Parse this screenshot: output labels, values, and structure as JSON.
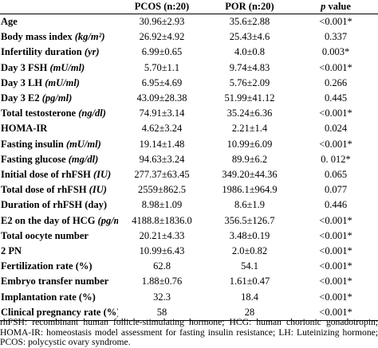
{
  "header": {
    "label": "",
    "pcos": "PCOS (n:20)",
    "por": "POR (n:20)",
    "p_italic": "p",
    "p_rest": " value"
  },
  "rows": [
    {
      "label": "Age",
      "label_unit": "",
      "pcos": "30.96±2.93",
      "por": "35.6±2.88",
      "p": "<0.001*"
    },
    {
      "label": "Body mass index ",
      "label_unit": "(kg/m²)",
      "pcos": "26.92±4.92",
      "por": "25.43±4.6",
      "p": "0.337"
    },
    {
      "label": "Infertility duration ",
      "label_unit": "(yr)",
      "pcos": "6.99±0.65",
      "por": "4.0±0.8",
      "p": "0.003*"
    },
    {
      "label": "Day 3 FSH ",
      "label_unit": "(mU/ml)",
      "pcos": "5.70±1.1",
      "por": "9.74±4.83",
      "p": "<0.001*"
    },
    {
      "label": "Day 3 LH ",
      "label_unit": "(mU/ml)",
      "pcos": "6.95±4.69",
      "por": "5.76±2.09",
      "p": "0.266"
    },
    {
      "label": "Day 3 E2 ",
      "label_unit": "(pg/ml)",
      "pcos": "43.09±28.38",
      "por": "51.99±41.12",
      "p": "0.445"
    },
    {
      "label": "Total testosterone ",
      "label_unit": "(ng/dl)",
      "pcos": "74.91±3.14",
      "por": "35.24±6.36",
      "p": "<0.001*"
    },
    {
      "label": "HOMA-IR",
      "label_unit": "",
      "pcos": "4.62±3.24",
      "por": "2.21±1.4",
      "p": "0.024"
    },
    {
      "label": "Fasting insulin ",
      "label_unit": "(mU/ml)",
      "pcos": "19.14±1.48",
      "por": "10.99±6.09",
      "p": "<0.001*"
    },
    {
      "label": "Fasting glucose ",
      "label_unit": "(mg/dl)",
      "pcos": "94.63±3.24",
      "por": "89.9±6.2",
      "p": "0. 012*"
    },
    {
      "label": "Initial dose of rhFSH ",
      "label_unit": "(IU)",
      "pcos": "277.37±63.45",
      "por": "349.20±44.36",
      "p": "0.065"
    },
    {
      "label": "Total dose of rhFSH ",
      "label_unit": "(IU)",
      "pcos": "2559±862.5",
      "por": "1986.1±964.9",
      "p": "0.077"
    },
    {
      "label": "Duration of rhFSH (day)",
      "label_unit": "",
      "pcos": "8.98±1.09",
      "por": "8.6±1.9",
      "p": "0.446"
    },
    {
      "label": "E2 on the day of HCG ",
      "label_unit": "(pg/ml)",
      "pcos": "4188.8±1836.0",
      "por": "356.5±126.7",
      "p": "<0.001*"
    },
    {
      "label": "Total oocyte number",
      "label_unit": "",
      "pcos": "20.21±4.33",
      "por": "3.48±0.19",
      "p": "<0.001*"
    },
    {
      "label": "2 PN",
      "label_unit": "",
      "pcos": "10.99±6.43",
      "por": "2.0±0.82",
      "p": "<0.001*"
    },
    {
      "label": "Fertilization rate (%)",
      "label_unit": "",
      "pcos": "62.8",
      "por": "54.1",
      "p": "<0.001*"
    },
    {
      "label": "Embryo transfer number",
      "label_unit": "",
      "pcos": "1.88±0.76",
      "por": "1.61±0.47",
      "p": "<0.001*"
    },
    {
      "label": "Implantation rate (%)",
      "label_unit": "",
      "pcos": "32.3",
      "por": "18.4",
      "p": "<0.001*"
    },
    {
      "label": "Clinical pregnancy rate (%)",
      "label_unit": "",
      "pcos": "58",
      "por": "28",
      "p": "<0.001*"
    }
  ],
  "footnote": "rhFSH: recombinant human follicle-stimulating hormone; HCG: human chorionic gonadotropin; HOMA-IR: homeostasis model assessment for fasting insulin resistance; LH: Luteinizing hormone; PCOS: polycystic ovary syndrome."
}
